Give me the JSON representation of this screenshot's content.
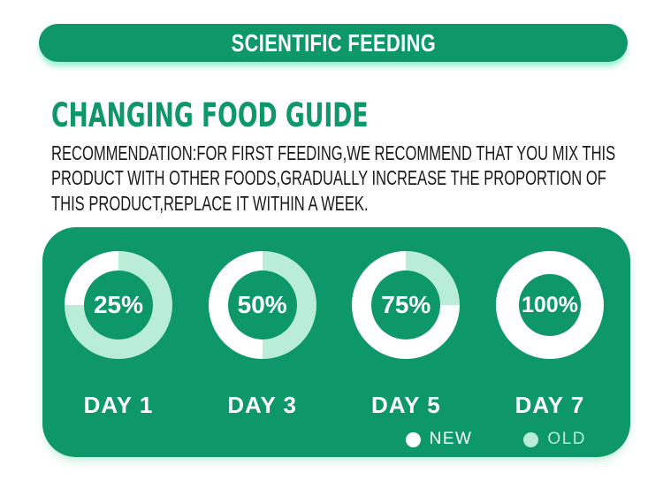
{
  "banner": {
    "title": "SCIENTIFIC FEEDING"
  },
  "section": {
    "title": "CHANGING FOOD GUIDE",
    "description_lines": [
      "RECOMMENDATION:FOR FIRST FEEDING,WE RECOMMEND THAT YOU MIX THIS",
      "PRODUCT WITH OTHER FOODS,GRADUALLY INCREASE THE PROPORTION OF",
      "THIS PRODUCT,REPLACE IT WITHIN A WEEK."
    ]
  },
  "chart_data": {
    "type": "pie",
    "variant": "donut-progress-row",
    "categories": [
      "DAY 1",
      "DAY 3",
      "DAY 5",
      "DAY 7"
    ],
    "series": [
      {
        "name": "NEW",
        "color": "#ffffff",
        "values": [
          25,
          50,
          75,
          100
        ]
      },
      {
        "name": "OLD",
        "color": "#b9edd8",
        "values": [
          75,
          50,
          25,
          0
        ]
      }
    ],
    "value_labels": [
      "25%",
      "50%",
      "75%",
      "100%"
    ],
    "legend": [
      {
        "label": "NEW",
        "color": "#ffffff"
      },
      {
        "label": "OLD",
        "color": "#b9edd8"
      }
    ],
    "legend_position": "bottom-right",
    "arc_start": "top",
    "arc_direction": "old-clockwise-from-top"
  },
  "colors": {
    "green": "#0e9768",
    "mint": "#b9edd8",
    "white": "#ffffff",
    "text_dark": "#1a1a1a"
  }
}
